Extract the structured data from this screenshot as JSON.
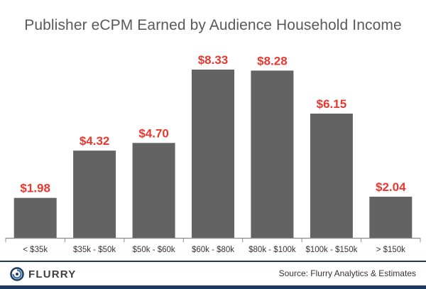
{
  "chart_data": {
    "type": "bar",
    "title": "Publisher eCPM Earned by Audience Household Income",
    "xlabel": "",
    "ylabel": "",
    "ylim": [
      0,
      9
    ],
    "grid": false,
    "legend": "none",
    "categories": [
      "< $35k",
      "$35k - $50k",
      "$50k - $60k",
      "$60k - $80k",
      "$80k - $100k",
      "$100k - $150k",
      "> $150k"
    ],
    "values": [
      1.98,
      4.32,
      4.7,
      8.33,
      8.28,
      6.15,
      2.04
    ],
    "data_labels": [
      "$1.98",
      "$4.32",
      "$4.70",
      "$8.33",
      "$8.28",
      "$6.15",
      "$2.04"
    ],
    "colors": {
      "bar": "#636363",
      "label": "#e8382f",
      "axis": "#8c8c8c"
    }
  },
  "footer": {
    "brand": "FLURRY",
    "source": "Source: Flurry Analytics & Estimates",
    "rule_color": "#1f3b5c"
  }
}
